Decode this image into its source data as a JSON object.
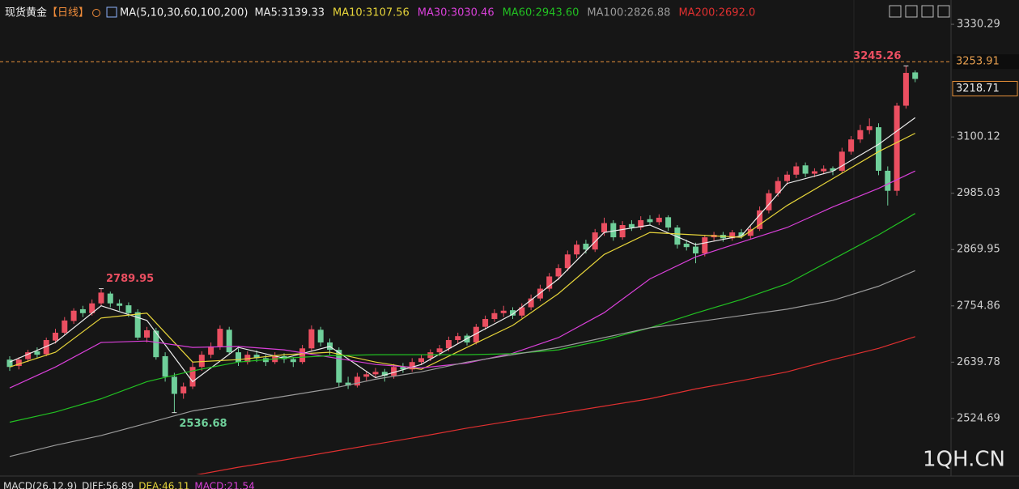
{
  "chart_data": {
    "type": "candlestick",
    "title": "现货黄金",
    "period": "【日线】",
    "indicator": "MA(5,10,30,60,100,200)",
    "up_color": "#eb4f61",
    "down_color": "#6fcf9a",
    "ylim": [
      2412,
      3380
    ],
    "yticks": [
      2524.69,
      2639.78,
      2754.86,
      2869.95,
      2985.03,
      3100.12,
      3330.29
    ],
    "price_line": 3253.91,
    "candles": [
      [
        2645,
        2652,
        2622,
        2630
      ],
      [
        2632,
        2650,
        2625,
        2645
      ],
      [
        2646,
        2665,
        2640,
        2660
      ],
      [
        2662,
        2670,
        2648,
        2655
      ],
      [
        2656,
        2690,
        2652,
        2685
      ],
      [
        2684,
        2708,
        2678,
        2700
      ],
      [
        2700,
        2732,
        2695,
        2725
      ],
      [
        2724,
        2750,
        2718,
        2745
      ],
      [
        2748,
        2755,
        2732,
        2740
      ],
      [
        2740,
        2768,
        2735,
        2760
      ],
      [
        2760,
        2789.95,
        2755,
        2782
      ],
      [
        2780,
        2784,
        2752,
        2760
      ],
      [
        2760,
        2768,
        2745,
        2755
      ],
      [
        2756,
        2762,
        2732,
        2740
      ],
      [
        2742,
        2748,
        2685,
        2690
      ],
      [
        2690,
        2712,
        2680,
        2705
      ],
      [
        2704,
        2710,
        2645,
        2650
      ],
      [
        2652,
        2660,
        2600,
        2610
      ],
      [
        2610,
        2618,
        2536.68,
        2575
      ],
      [
        2576,
        2598,
        2565,
        2590
      ],
      [
        2590,
        2640,
        2585,
        2630
      ],
      [
        2630,
        2662,
        2622,
        2655
      ],
      [
        2655,
        2680,
        2648,
        2672
      ],
      [
        2672,
        2715,
        2665,
        2708
      ],
      [
        2706,
        2712,
        2655,
        2660
      ],
      [
        2660,
        2668,
        2632,
        2640
      ],
      [
        2640,
        2662,
        2635,
        2655
      ],
      [
        2655,
        2664,
        2640,
        2648
      ],
      [
        2648,
        2655,
        2632,
        2640
      ],
      [
        2640,
        2660,
        2636,
        2652
      ],
      [
        2652,
        2658,
        2638,
        2646
      ],
      [
        2646,
        2650,
        2630,
        2640
      ],
      [
        2640,
        2675,
        2636,
        2668
      ],
      [
        2668,
        2715,
        2662,
        2707
      ],
      [
        2706,
        2712,
        2672,
        2680
      ],
      [
        2680,
        2688,
        2655,
        2665
      ],
      [
        2665,
        2670,
        2590,
        2598
      ],
      [
        2598,
        2610,
        2585,
        2592
      ],
      [
        2592,
        2618,
        2588,
        2610
      ],
      [
        2610,
        2622,
        2602,
        2615
      ],
      [
        2615,
        2628,
        2608,
        2620
      ],
      [
        2620,
        2626,
        2600,
        2612
      ],
      [
        2612,
        2636,
        2606,
        2630
      ],
      [
        2630,
        2638,
        2618,
        2625
      ],
      [
        2625,
        2648,
        2620,
        2640
      ],
      [
        2640,
        2655,
        2634,
        2648
      ],
      [
        2648,
        2666,
        2642,
        2660
      ],
      [
        2660,
        2675,
        2652,
        2668
      ],
      [
        2668,
        2692,
        2662,
        2685
      ],
      [
        2685,
        2700,
        2678,
        2693
      ],
      [
        2694,
        2698,
        2674,
        2680
      ],
      [
        2680,
        2718,
        2676,
        2712
      ],
      [
        2712,
        2735,
        2706,
        2728
      ],
      [
        2728,
        2748,
        2722,
        2740
      ],
      [
        2740,
        2755,
        2732,
        2745
      ],
      [
        2746,
        2752,
        2728,
        2735
      ],
      [
        2735,
        2760,
        2730,
        2752
      ],
      [
        2752,
        2778,
        2746,
        2770
      ],
      [
        2770,
        2798,
        2765,
        2790
      ],
      [
        2790,
        2822,
        2784,
        2815
      ],
      [
        2815,
        2840,
        2808,
        2832
      ],
      [
        2832,
        2868,
        2826,
        2860
      ],
      [
        2860,
        2888,
        2852,
        2880
      ],
      [
        2882,
        2890,
        2862,
        2870
      ],
      [
        2870,
        2912,
        2865,
        2905
      ],
      [
        2905,
        2935,
        2898,
        2924
      ],
      [
        2924,
        2930,
        2888,
        2895
      ],
      [
        2895,
        2928,
        2890,
        2920
      ],
      [
        2922,
        2930,
        2908,
        2915
      ],
      [
        2915,
        2938,
        2910,
        2930
      ],
      [
        2932,
        2940,
        2920,
        2926
      ],
      [
        2926,
        2942,
        2920,
        2935
      ],
      [
        2936,
        2940,
        2908,
        2915
      ],
      [
        2915,
        2920,
        2872,
        2880
      ],
      [
        2882,
        2890,
        2868,
        2875
      ],
      [
        2876,
        2884,
        2842,
        2862
      ],
      [
        2862,
        2900,
        2856,
        2895
      ],
      [
        2895,
        2906,
        2888,
        2900
      ],
      [
        2900,
        2906,
        2886,
        2893
      ],
      [
        2893,
        2910,
        2888,
        2905
      ],
      [
        2905,
        2912,
        2892,
        2898
      ],
      [
        2898,
        2918,
        2892,
        2912
      ],
      [
        2912,
        2958,
        2908,
        2950
      ],
      [
        2950,
        2992,
        2944,
        2985
      ],
      [
        2985,
        3018,
        2978,
        3010
      ],
      [
        3010,
        3030,
        3002,
        3023
      ],
      [
        3023,
        3048,
        3016,
        3040
      ],
      [
        3042,
        3048,
        3018,
        3025
      ],
      [
        3025,
        3036,
        3018,
        3030
      ],
      [
        3030,
        3042,
        3024,
        3035
      ],
      [
        3036,
        3040,
        3022,
        3031
      ],
      [
        3031,
        3078,
        3026,
        3070
      ],
      [
        3070,
        3102,
        3064,
        3095
      ],
      [
        3095,
        3125,
        3088,
        3114
      ],
      [
        3114,
        3138,
        3106,
        3122
      ],
      [
        3120,
        3128,
        3022,
        3031
      ],
      [
        3031,
        3040,
        2960,
        2990
      ],
      [
        2990,
        3170,
        2980,
        3164
      ],
      [
        3164,
        3245.26,
        3158,
        3231
      ],
      [
        3232,
        3236,
        3212,
        3218.71
      ]
    ],
    "annotations": [
      {
        "candle": 10,
        "field": 1,
        "color": "#eb4f61"
      },
      {
        "candle": 18,
        "field": 2,
        "color": "#6fcf9a"
      },
      {
        "candle": 98,
        "field": 1,
        "color": "#eb4f61"
      }
    ],
    "ma_x": [
      0,
      5,
      10,
      15,
      20,
      25,
      30,
      35,
      40,
      45,
      50,
      55,
      60,
      65,
      70,
      75,
      80,
      85,
      90,
      95,
      99
    ],
    "series": [
      {
        "name": "MA5:3139.33",
        "color": "#ececec",
        "values": [
          2640,
          2680,
          2755,
          2725,
          2600,
          2670,
          2648,
          2672,
          2608,
          2635,
          2688,
          2738,
          2810,
          2905,
          2920,
          2880,
          2898,
          3005,
          3030,
          3085,
          3139.33
        ]
      },
      {
        "name": "MA10:3107.56",
        "color": "#e6d43a",
        "values": [
          2630,
          2660,
          2730,
          2740,
          2640,
          2645,
          2655,
          2660,
          2640,
          2625,
          2670,
          2715,
          2780,
          2860,
          2905,
          2900,
          2895,
          2960,
          3015,
          3070,
          3107.56
        ]
      },
      {
        "name": "MA30:3030.46",
        "color": "#d940d9",
        "values": [
          2587,
          2630,
          2680,
          2683,
          2670,
          2672,
          2665,
          2650,
          2635,
          2628,
          2638,
          2658,
          2690,
          2741,
          2810,
          2855,
          2885,
          2915,
          2957,
          2995,
          3030.46
        ]
      },
      {
        "name": "MA60:2943.60",
        "color": "#22c022",
        "values": [
          2517,
          2538,
          2565,
          2600,
          2622,
          2640,
          2648,
          2653,
          2655,
          2655,
          2655,
          2657,
          2665,
          2685,
          2710,
          2740,
          2768,
          2800,
          2850,
          2900,
          2943.6
        ]
      },
      {
        "name": "MA100:2826.88",
        "color": "#9a9a9a",
        "values": [
          2447,
          2470,
          2490,
          2515,
          2540,
          2555,
          2570,
          2585,
          2605,
          2620,
          2640,
          2655,
          2670,
          2690,
          2710,
          2722,
          2735,
          2748,
          2766,
          2795,
          2826.88
        ]
      },
      {
        "name": "MA200:2692.0",
        "color": "#e03030",
        "values": [
          null,
          null,
          null,
          null,
          2408,
          2425,
          2440,
          2456,
          2472,
          2488,
          2505,
          2520,
          2535,
          2550,
          2565,
          2585,
          2602,
          2620,
          2645,
          2668,
          2692
        ]
      }
    ],
    "watermark": "1QH.CN",
    "macd_legend": [
      {
        "text": "MACD(26,12,9)",
        "color": "#dcdcdc"
      },
      {
        "text": "DIFF:56.89",
        "color": "#dcdcdc"
      },
      {
        "text": "DEA:46.11",
        "color": "#e6d43a"
      },
      {
        "text": "MACD:21.54",
        "color": "#d940d9"
      }
    ]
  }
}
